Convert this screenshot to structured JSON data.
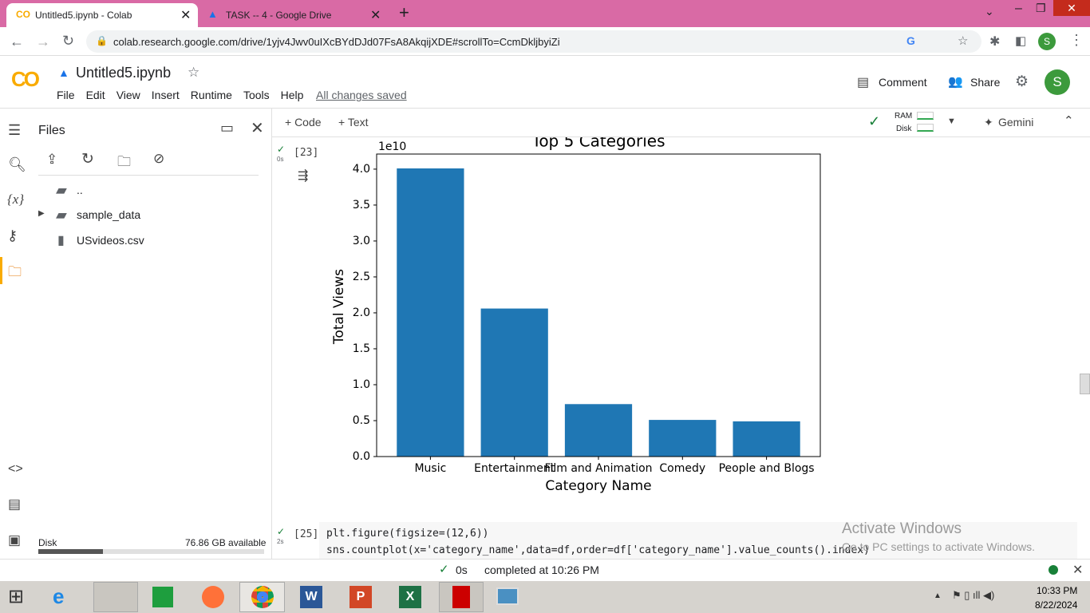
{
  "browser": {
    "tabs": [
      "Untitled5.ipynb - Colab",
      "TASK -- 4 - Google Drive"
    ],
    "url": "colab.research.google.com/drive/1yjv4Jwv0uIXcBYdDJd07FsA8AkqijXDE#scrollTo=CcmDkljbyiZi",
    "profile": "S"
  },
  "header": {
    "logo": "CO",
    "notebook_name": "Untitled5.ipynb",
    "menu": [
      "File",
      "Edit",
      "View",
      "Insert",
      "Runtime",
      "Tools",
      "Help"
    ],
    "saved": "All changes saved",
    "comment": "Comment",
    "share": "Share",
    "avatar": "S"
  },
  "toolbar": {
    "code": "+ Code",
    "text": "+ Text",
    "ram": "RAM",
    "disk": "Disk",
    "gemini": "Gemini"
  },
  "sidebar": {
    "title": "Files",
    "variables_icon": "{x}",
    "items": [
      "..",
      "sample_data",
      "USvideos.csv"
    ],
    "disk_label": "Disk",
    "disk_free": "76.86 GB available"
  },
  "cells": [
    {
      "exec": "[23]",
      "time": "0s"
    },
    {
      "exec": "[25]",
      "time": "2s",
      "code": [
        "plt.figure(figsize=(12,6))",
        "sns.countplot(x='category_name',data=df,order=df['category_name'].value_counts().index)"
      ]
    }
  ],
  "chart_data": {
    "type": "bar",
    "title": "Top 5 Categories",
    "x_label": "Category Name",
    "y_label": "Total Views",
    "y_offset_label": "1e10",
    "categories": [
      "Music",
      "Entertainment",
      "Film and Animation",
      "Comedy",
      "People and Blogs"
    ],
    "values": [
      4.01,
      2.06,
      0.73,
      0.51,
      0.49
    ],
    "color": "#1f77b4",
    "ylim": [
      0,
      4.21
    ],
    "yticks": [
      {
        "value": 0,
        "label": "0.0"
      },
      {
        "value": 0.5,
        "label": "0.5"
      },
      {
        "value": 1,
        "label": "1.0"
      },
      {
        "value": 1.5,
        "label": "1.5"
      },
      {
        "value": 2,
        "label": "2.0"
      },
      {
        "value": 2.5,
        "label": "2.5"
      },
      {
        "value": 3,
        "label": "3.0"
      },
      {
        "value": 3.5,
        "label": "3.5"
      },
      {
        "value": 4,
        "label": "4.0"
      }
    ]
  },
  "status": {
    "time": "0s",
    "message": "completed at 10:26 PM"
  },
  "watermark": {
    "title": "Activate Windows",
    "subtitle": "Go to PC settings to activate Windows."
  },
  "taskbar": {
    "time": "10:33 PM",
    "date": "8/22/2024"
  }
}
